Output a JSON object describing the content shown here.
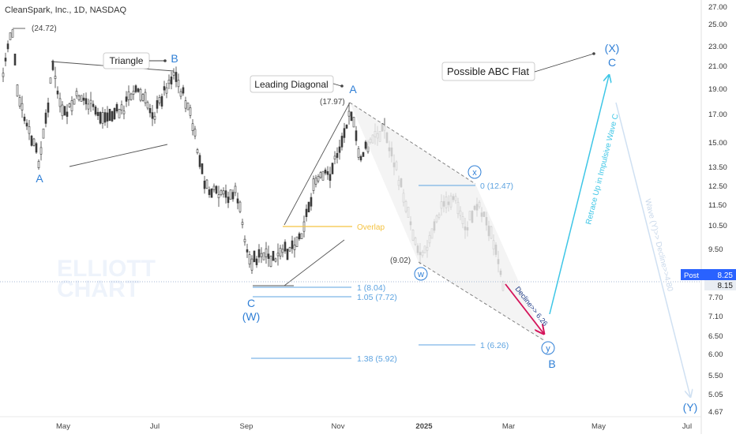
{
  "header": {
    "title": "CleanSpark, Inc., 1D, NASDAQ"
  },
  "colors": {
    "wave_blue": "#2f7fd6",
    "fib_blue": "#5da3e0",
    "grey_text": "#555555",
    "candle": "#3a3a3a",
    "cyan_arrow": "#3ec6e6",
    "decline_arrow": "#d4145a",
    "overlap": "#f5c342",
    "projection": "#cfe0f2",
    "post_badge": "#2962ff"
  },
  "chart_data": {
    "type": "candlestick",
    "title": "CleanSpark, Inc., 1D, NASDAQ",
    "scale": "log",
    "ylim": [
      4.6,
      28.0
    ],
    "price_axis_ticks": [
      "27.00",
      "25.00",
      "23.00",
      "21.00",
      "19.00",
      "17.00",
      "15.00",
      "13.50",
      "12.50",
      "11.50",
      "10.50",
      "9.50",
      "7.70",
      "7.10",
      "6.50",
      "6.00",
      "5.50",
      "5.05",
      "4.67"
    ],
    "time_axis_ticks": [
      "May",
      "Jul",
      "Sep",
      "Nov",
      "2025",
      "Mar",
      "May",
      "Jul"
    ],
    "current_price": {
      "label": "Post",
      "price": "8.25",
      "last": "8.15"
    },
    "price_labels": [
      {
        "id": "high-2472",
        "text": "(24.72)"
      },
      {
        "id": "high-1797",
        "text": "(17.97)"
      },
      {
        "id": "low-902",
        "text": "(9.02)"
      }
    ],
    "wave_labels": [
      {
        "id": "wave-a-left",
        "text": "A"
      },
      {
        "id": "wave-b-top",
        "text": "B"
      },
      {
        "id": "wave-c",
        "text": "C"
      },
      {
        "id": "wave-w-major",
        "text": "(W)"
      },
      {
        "id": "wave-a-nov",
        "text": "A"
      },
      {
        "id": "wave-w-circle",
        "text": "w"
      },
      {
        "id": "wave-x-circle",
        "text": "x"
      },
      {
        "id": "wave-y-circle",
        "text": "y"
      },
      {
        "id": "wave-b-projected",
        "text": "B"
      },
      {
        "id": "wave-x-major",
        "text": "(X)"
      },
      {
        "id": "wave-c-projected",
        "text": "C"
      },
      {
        "id": "wave-y-major",
        "text": "(Y)"
      }
    ],
    "annotations": [
      {
        "id": "triangle",
        "text": "Triangle"
      },
      {
        "id": "leading-diagonal",
        "text": "Leading Diagonal"
      },
      {
        "id": "possible-abc-flat",
        "text": "Possible ABC Flat"
      },
      {
        "id": "overlap",
        "text": "Overlap"
      },
      {
        "id": "retrace-text",
        "text": "Retrace Up in Impulsive Wave C"
      },
      {
        "id": "decline-text",
        "text": "Decline>> 6.26"
      },
      {
        "id": "wave-y-decline",
        "text": "Wave (Y)>> Decline>>4.80"
      }
    ],
    "fib_levels": [
      {
        "id": "fib-0",
        "text": "0 (12.47)"
      },
      {
        "id": "fib-1-804",
        "text": "1 (8.04)"
      },
      {
        "id": "fib-105",
        "text": "1.05 (7.72)"
      },
      {
        "id": "fib-1-626",
        "text": "1 (6.26)"
      },
      {
        "id": "fib-138",
        "text": "1.38 (5.92)"
      }
    ],
    "watermark": [
      "ELLIOTT",
      "CHART"
    ]
  }
}
